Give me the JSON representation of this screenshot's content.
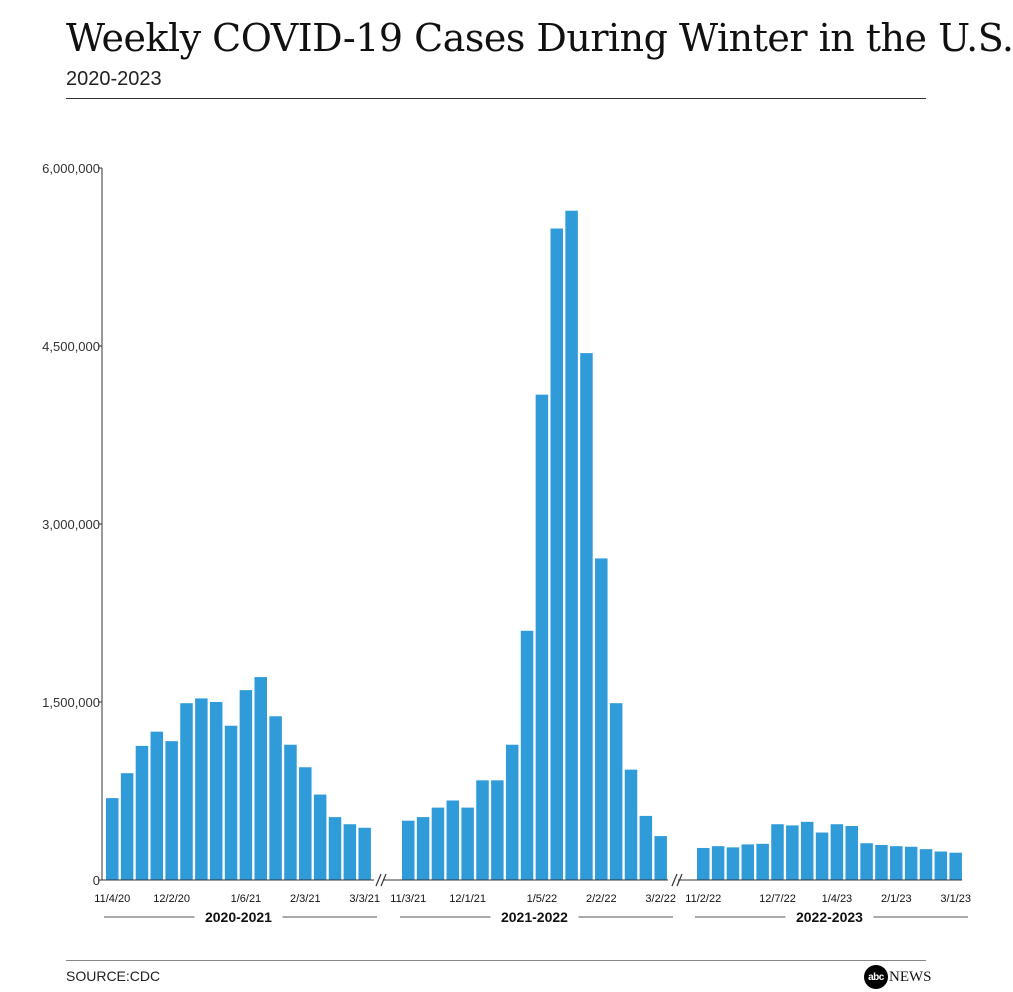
{
  "title": "Weekly COVID-19 Cases During Winter in the U.S.",
  "subtitle": "2020-2023",
  "source": "SOURCE:CDC",
  "logo": {
    "mark": "abc",
    "text": "NEWS"
  },
  "colors": {
    "bar": "#2f9bd8",
    "axis": "#333333"
  },
  "chart_data": {
    "type": "bar",
    "title": "Weekly COVID-19 Cases During Winter in the U.S.",
    "ylim": [
      0,
      6000000
    ],
    "yticks": [
      {
        "value": 0,
        "label": "0"
      },
      {
        "value": 1500000,
        "label": "1,500,000"
      },
      {
        "value": 3000000,
        "label": "3,000,000"
      },
      {
        "value": 4500000,
        "label": "4,500,000"
      },
      {
        "value": 6000000,
        "label": "6,000,000"
      }
    ],
    "groups": [
      {
        "name": "2020-2021",
        "values": [
          690000,
          900000,
          1130000,
          1250000,
          1170000,
          1490000,
          1530000,
          1500000,
          1300000,
          1600000,
          1710000,
          1380000,
          1140000,
          950000,
          720000,
          530000,
          470000,
          440000
        ],
        "tick_labels": [
          {
            "index": 0,
            "label": "11/4/20"
          },
          {
            "index": 4,
            "label": "12/2/20"
          },
          {
            "index": 9,
            "label": "1/6/21"
          },
          {
            "index": 13,
            "label": "2/3/21"
          },
          {
            "index": 17,
            "label": "3/3/21"
          }
        ]
      },
      {
        "name": "2021-2022",
        "values": [
          500000,
          530000,
          610000,
          670000,
          610000,
          840000,
          840000,
          1140000,
          2100000,
          4090000,
          5490000,
          5640000,
          4440000,
          2710000,
          1490000,
          930000,
          540000,
          370000
        ],
        "tick_labels": [
          {
            "index": 0,
            "label": "11/3/21"
          },
          {
            "index": 4,
            "label": "12/1/21"
          },
          {
            "index": 9,
            "label": "1/5/22"
          },
          {
            "index": 13,
            "label": "2/2/22"
          },
          {
            "index": 17,
            "label": "3/2/22"
          }
        ]
      },
      {
        "name": "2022-2023",
        "values": [
          270000,
          285000,
          275000,
          300000,
          305000,
          470000,
          460000,
          490000,
          400000,
          470000,
          455000,
          310000,
          295000,
          285000,
          280000,
          260000,
          240000,
          230000
        ],
        "tick_labels": [
          {
            "index": 0,
            "label": "11/2/22"
          },
          {
            "index": 5,
            "label": "12/7/22"
          },
          {
            "index": 9,
            "label": "1/4/23"
          },
          {
            "index": 13,
            "label": "2/1/23"
          },
          {
            "index": 17,
            "label": "3/1/23"
          }
        ]
      }
    ]
  }
}
